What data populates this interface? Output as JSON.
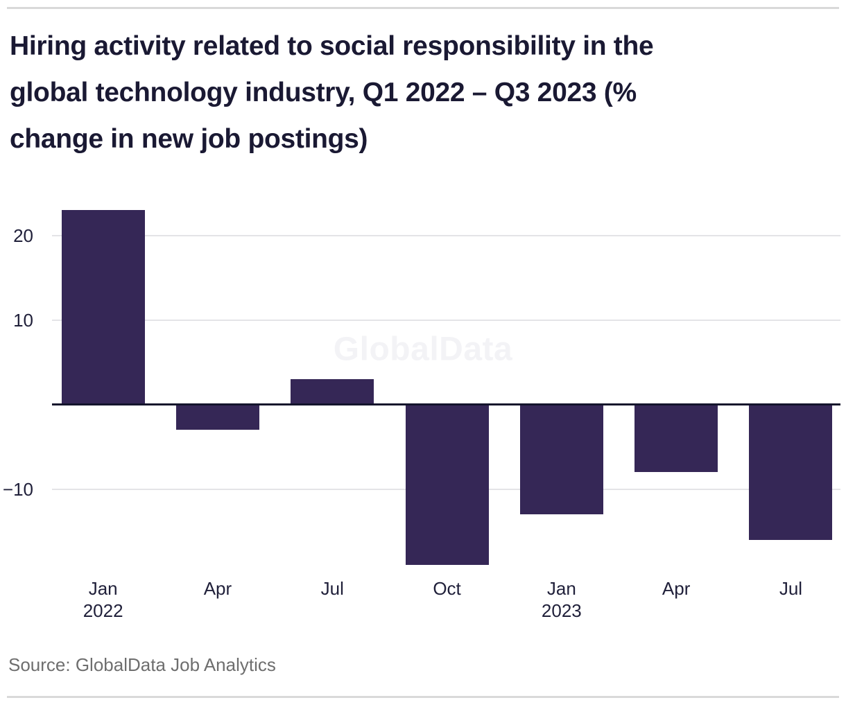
{
  "header": {
    "title_lines": [
      "Hiring activity related to social responsibility in the",
      "global technology industry, Q1 2022 – Q3 2023 (%",
      "change in new job postings)"
    ]
  },
  "watermark": "GlobalData",
  "footer": {
    "source": "Source: GlobalData Job Analytics"
  },
  "colors": {
    "bar": "#352756",
    "title_text": "#1a1933",
    "axis_text": "#20203a",
    "gridline": "#e4e4e7",
    "zero_line": "#14142c",
    "source_text": "#6e6e6e",
    "watermark": "#f3f3f6",
    "divider": "#d9d9d9",
    "background": "#ffffff"
  },
  "chart_data": {
    "type": "bar",
    "title": "Hiring activity related to social responsibility in the global technology industry, Q1 2022 – Q3 2023 (% change in new job postings)",
    "ylabel": "% change in new job postings",
    "categories": [
      {
        "month": "Jan",
        "year": "2022"
      },
      {
        "month": "Apr",
        "year": ""
      },
      {
        "month": "Jul",
        "year": ""
      },
      {
        "month": "Oct",
        "year": ""
      },
      {
        "month": "Jan",
        "year": "2023"
      },
      {
        "month": "Apr",
        "year": ""
      },
      {
        "month": "Jul",
        "year": ""
      }
    ],
    "values": [
      23,
      -3,
      3,
      -19,
      -13,
      -8,
      -16
    ],
    "yticks": [
      {
        "value": 20,
        "label": "20"
      },
      {
        "value": 10,
        "label": "10"
      },
      {
        "value": -10,
        "label": "−10"
      }
    ],
    "ylim": [
      -19.2,
      23
    ],
    "grid": true,
    "legend": false
  }
}
